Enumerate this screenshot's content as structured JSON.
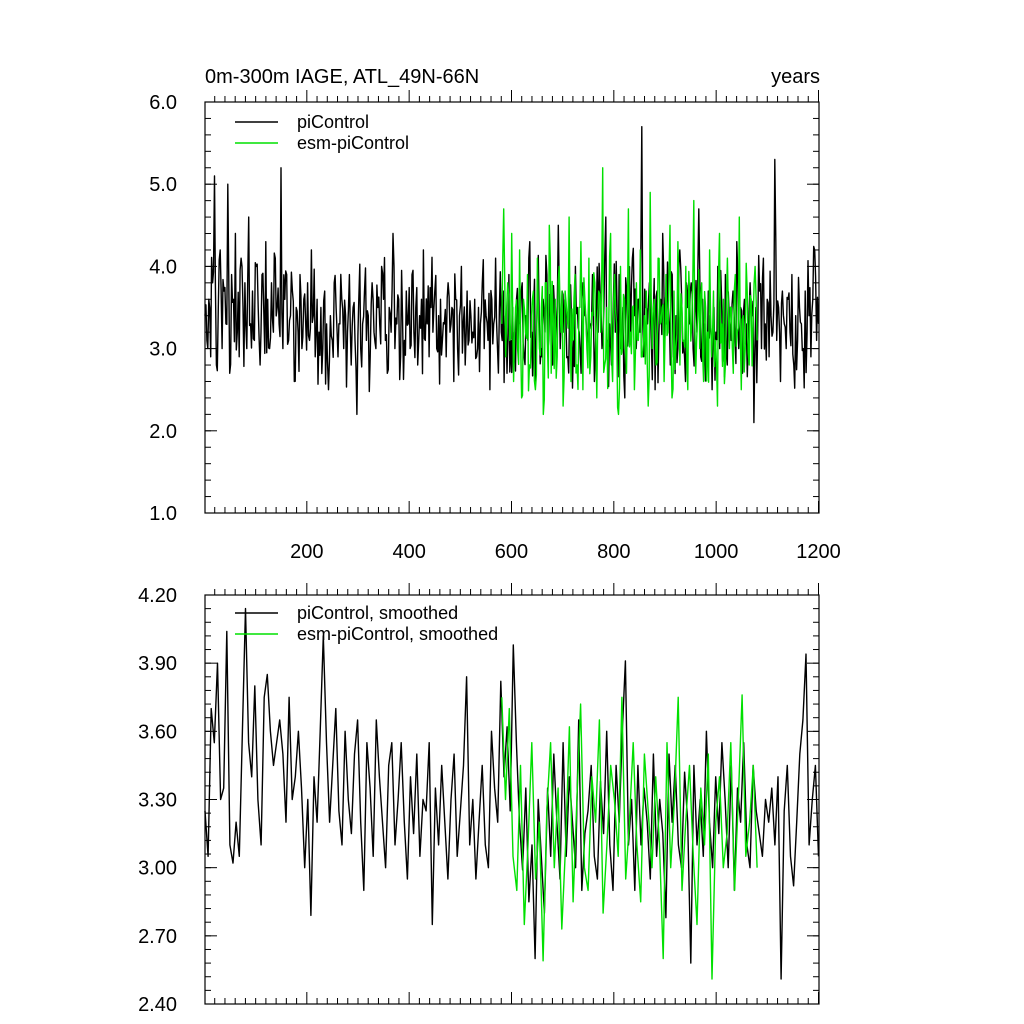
{
  "colors": {
    "piControl": "#000000",
    "esm_piControl": "#00e000",
    "axis": "#000000",
    "background": "#ffffff"
  },
  "chart_data": [
    {
      "type": "line",
      "title": "0m-300m IAGE, ATL_49N-66N",
      "units_label": "years",
      "xlabel": "",
      "ylabel": "",
      "xlim": [
        1,
        1201
      ],
      "ylim": [
        1.0,
        6.0
      ],
      "y_ticks": [
        "1.0",
        "2.0",
        "3.0",
        "4.0",
        "5.0",
        "6.0"
      ],
      "x_ticks": [
        "200",
        "400",
        "600",
        "800",
        "1000",
        "1200"
      ],
      "legend": {
        "placement": "top-left",
        "entries": [
          "piControl",
          "esm-piControl"
        ]
      },
      "series": [
        {
          "name": "piControl",
          "x_range": [
            1,
            1200
          ],
          "mean": 3.3,
          "values": [
            3.4,
            3.1,
            3.6,
            2.9,
            3.8,
            5.1,
            2.8,
            3.5,
            4.2,
            3.0,
            3.7,
            3.3,
            5.0,
            2.7,
            3.9,
            3.6,
            4.4,
            3.2,
            2.9,
            4.1,
            3.5,
            3.8,
            3.0,
            4.6,
            3.3,
            3.7,
            3.1,
            4.0,
            3.5,
            2.8,
            3.9,
            3.4,
            4.3,
            3.6,
            3.0,
            3.8,
            3.2,
            4.1,
            3.5,
            3.3,
            5.2,
            3.0,
            3.6,
            3.9,
            3.1,
            3.4,
            3.7,
            2.6,
            3.5,
            3.2,
            3.9,
            3.0,
            3.6,
            3.3,
            3.8,
            3.1,
            4.2,
            3.4,
            2.9,
            3.6,
            3.2,
            3.5,
            3.0,
            3.7,
            3.3,
            2.5,
            3.4,
            3.1,
            3.8,
            3.5,
            2.9,
            3.3,
            3.6,
            3.0,
            3.4,
            3.2,
            3.9,
            2.8,
            3.5,
            3.1,
            2.2,
            3.6,
            3.0,
            3.3,
            3.7,
            3.1,
            3.4,
            2.9,
            3.8,
            3.2,
            3.0,
            3.5,
            3.3,
            4.0,
            3.6,
            3.1,
            2.7,
            3.5,
            3.2,
            4.4,
            3.0,
            3.3,
            3.6,
            2.9,
            3.4,
            3.1,
            3.7,
            3.3,
            3.0,
            3.9,
            3.2,
            3.5,
            2.8,
            3.4,
            3.6,
            4.2,
            3.1,
            3.3,
            2.9,
            3.5,
            3.2,
            3.7,
            3.0,
            3.4,
            3.6,
            3.1,
            3.3,
            2.9,
            3.8,
            3.2,
            3.5,
            2.6,
            3.6,
            3.0,
            3.4,
            4.0,
            3.3,
            2.8,
            3.7,
            3.1,
            3.4,
            3.2,
            3.6,
            2.9,
            3.5,
            3.3,
            3.8,
            3.0,
            3.4,
            3.1,
            2.5,
            3.6,
            3.3,
            4.1,
            3.0,
            3.5,
            3.2,
            3.7,
            3.4,
            2.7,
            3.9,
            3.1,
            3.5,
            3.2,
            3.6,
            3.0,
            3.3,
            3.8,
            2.9,
            3.4,
            3.1,
            4.3,
            3.2,
            3.5,
            2.6,
            3.7,
            3.3,
            3.0,
            3.6,
            3.2,
            3.9,
            3.1,
            3.4,
            2.8,
            3.5,
            3.3,
            4.5,
            3.0,
            3.7,
            3.2,
            3.4,
            2.9,
            3.6,
            3.3,
            3.1,
            4.0,
            3.5,
            3.2,
            2.7,
            3.8,
            3.4,
            3.1,
            3.6,
            3.3,
            3.9,
            2.6,
            3.4,
            3.2,
            3.7,
            3.0,
            3.5,
            4.6,
            3.1,
            3.3,
            2.8,
            3.6,
            3.2,
            3.4,
            3.9,
            3.0,
            3.5,
            2.4,
            3.7,
            3.3,
            3.1,
            4.1,
            3.4,
            3.0,
            3.6,
            3.2,
            5.7,
            2.9,
            3.5,
            3.3,
            3.8,
            3.1,
            3.4,
            2.5,
            3.7,
            3.2,
            3.6,
            4.4,
            3.0,
            3.3,
            3.5,
            2.8,
            3.9,
            3.2,
            3.4,
            3.0,
            4.2,
            3.6,
            3.1,
            2.6,
            3.5,
            3.3,
            3.8,
            3.0,
            3.4,
            3.2,
            4.7,
            2.9,
            3.6,
            3.3,
            3.1,
            3.7,
            3.4,
            2.5,
            3.5,
            3.2,
            4.0,
            3.0,
            3.6,
            3.3,
            3.9,
            2.8,
            3.4,
            3.1,
            3.7,
            3.2,
            4.3,
            3.0,
            3.5,
            2.7,
            3.6,
            3.3,
            3.1,
            3.8,
            3.4,
            2.1,
            3.5,
            3.2,
            3.7,
            3.0,
            4.1,
            3.3,
            3.6,
            2.9,
            3.4,
            3.2,
            5.3,
            3.1,
            3.5,
            2.6,
            3.7,
            3.3,
            3.0,
            3.6,
            3.2,
            3.9,
            2.8,
            3.4,
            3.1,
            3.5,
            3.3,
            3.0,
            3.7,
            3.2,
            3.4,
            2.9,
            3.6,
            4.2,
            3.1,
            3.3
          ]
        },
        {
          "name": "esm-piControl",
          "x_range": [
            581,
            1080
          ],
          "mean": 3.2,
          "values": [
            3.3,
            4.7,
            2.9,
            3.8,
            3.1,
            4.4,
            2.6,
            3.5,
            3.0,
            4.2,
            2.4,
            3.6,
            3.2,
            3.9,
            2.8,
            3.4,
            3.7,
            2.5,
            4.1,
            3.0,
            3.5,
            2.2,
            3.8,
            3.1,
            4.5,
            2.7,
            3.3,
            3.6,
            2.9,
            4.0,
            3.2,
            2.3,
            3.7,
            3.4,
            4.6,
            2.6,
            3.1,
            3.9,
            2.8,
            3.5,
            4.3,
            2.5,
            3.6,
            3.0,
            4.1,
            2.9,
            3.4,
            3.8,
            2.4,
            3.7,
            3.2,
            5.2,
            2.8,
            3.5,
            3.1,
            4.4,
            2.6,
            3.9,
            3.3,
            2.2,
            4.0,
            3.0,
            3.6,
            2.7,
            4.7,
            3.2,
            3.5,
            2.5,
            3.8,
            3.1,
            4.2,
            2.9,
            3.4,
            3.7,
            2.3,
            4.9,
            3.0,
            3.6,
            2.8,
            4.1,
            3.3,
            3.5,
            2.6,
            3.9,
            3.2,
            4.5,
            2.4,
            3.7,
            3.0,
            4.3,
            2.8,
            3.5,
            3.1,
            4.0,
            2.5,
            3.6,
            3.3,
            4.8,
            2.7,
            3.4,
            3.0,
            3.8,
            2.6,
            3.5,
            3.2,
            4.2,
            2.9,
            3.7,
            3.1,
            2.3,
            4.4,
            3.3,
            3.6,
            2.8,
            4.1,
            3.0,
            3.5,
            2.7,
            3.9,
            3.2,
            4.6,
            2.5,
            3.4,
            3.0,
            3.7,
            2.8,
            3.6,
            3.3,
            4.0,
            3.1
          ]
        }
      ]
    },
    {
      "type": "line",
      "title": "",
      "xlabel": "",
      "ylabel": "",
      "xlim": [
        1,
        1201
      ],
      "ylim": [
        2.4,
        4.2
      ],
      "y_ticks": [
        "2.40",
        "2.70",
        "3.00",
        "3.30",
        "3.60",
        "3.90",
        "4.20"
      ],
      "x_ticks": [],
      "legend": {
        "placement": "top-left",
        "entries": [
          "piControl, smoothed",
          "esm-piControl, smoothed"
        ]
      },
      "series": [
        {
          "name": "piControl, smoothed",
          "x_range": [
            1,
            1200
          ],
          "values": [
            3.25,
            3.05,
            3.7,
            3.55,
            3.9,
            3.3,
            3.35,
            4.04,
            3.1,
            3.02,
            3.2,
            3.05,
            3.6,
            4.14,
            3.55,
            3.4,
            3.8,
            3.3,
            3.1,
            3.75,
            3.85,
            3.6,
            3.45,
            3.55,
            3.65,
            3.5,
            3.2,
            3.75,
            3.3,
            3.4,
            3.6,
            3.35,
            3.0,
            3.3,
            2.79,
            3.4,
            3.2,
            3.6,
            4.02,
            3.55,
            3.2,
            3.45,
            3.7,
            3.25,
            3.1,
            3.6,
            3.3,
            3.15,
            3.5,
            3.65,
            3.2,
            2.9,
            3.55,
            3.35,
            3.05,
            3.65,
            3.4,
            3.2,
            3.0,
            3.45,
            3.55,
            3.1,
            3.3,
            3.55,
            3.2,
            2.95,
            3.4,
            3.15,
            3.5,
            3.05,
            3.3,
            3.25,
            3.55,
            2.75,
            3.35,
            3.1,
            3.45,
            3.2,
            2.95,
            3.3,
            3.5,
            3.05,
            3.25,
            3.45,
            3.84,
            3.1,
            3.3,
            2.95,
            3.2,
            3.45,
            3.1,
            3.0,
            3.6,
            3.35,
            3.2,
            3.82,
            3.4,
            3.62,
            3.25,
            3.98,
            3.55,
            3.2,
            2.99,
            3.35,
            2.85,
            3.1,
            2.6,
            3.3,
            3.05,
            2.8,
            3.35,
            3.05,
            3.5,
            3.2,
            2.95,
            3.55,
            3.05,
            3.4,
            3.2,
            3.0,
            3.65,
            2.9,
            3.15,
            3.25,
            3.45,
            3.05,
            2.95,
            3.38,
            3.15,
            3.6,
            3.1,
            2.9,
            3.45,
            3.2,
            3.6,
            3.91,
            3.1,
            3.3,
            2.9,
            3.45,
            3.1,
            3.35,
            3.2,
            2.95,
            3.5,
            3.05,
            3.3,
            3.15,
            2.78,
            3.5,
            3.2,
            3.45,
            3.1,
            3.0,
            3.42,
            3.2,
            2.58,
            3.45,
            3.1,
            3.3,
            3.05,
            3.6,
            3.2,
            3.0,
            3.4,
            3.15,
            3.55,
            3.3,
            3.0,
            3.45,
            2.9,
            3.35,
            3.2,
            3.55,
            3.1,
            3.0,
            3.45,
            3.25,
            3.15,
            3.05,
            3.3,
            3.2,
            3.35,
            3.1,
            3.4,
            2.51,
            3.25,
            3.45,
            3.05,
            2.92,
            3.2,
            3.5,
            3.65,
            3.94,
            3.1,
            3.3,
            3.45,
            3.05
          ]
        },
        {
          "name": "esm-piControl, smoothed",
          "x_range": [
            581,
            1080
          ],
          "values": [
            3.75,
            3.3,
            3.7,
            3.05,
            2.9,
            3.45,
            2.75,
            3.1,
            3.55,
            2.95,
            3.2,
            2.59,
            3.25,
            3.55,
            3.0,
            3.35,
            2.73,
            3.1,
            3.62,
            2.85,
            3.3,
            3.72,
            3.0,
            2.9,
            3.4,
            3.2,
            3.65,
            2.8,
            3.1,
            3.45,
            3.3,
            3.05,
            3.75,
            2.95,
            3.2,
            3.55,
            3.1,
            2.85,
            3.5,
            3.25,
            3.0,
            3.4,
            3.1,
            2.6,
            3.55,
            3.0,
            3.3,
            3.75,
            2.9,
            3.2,
            3.45,
            3.05,
            2.75,
            3.35,
            3.1,
            3.5,
            2.51,
            3.2,
            3.4,
            3.0,
            3.15,
            3.55,
            2.9,
            3.3,
            3.76,
            3.05,
            3.2,
            3.45,
            3.0
          ]
        }
      ]
    }
  ]
}
